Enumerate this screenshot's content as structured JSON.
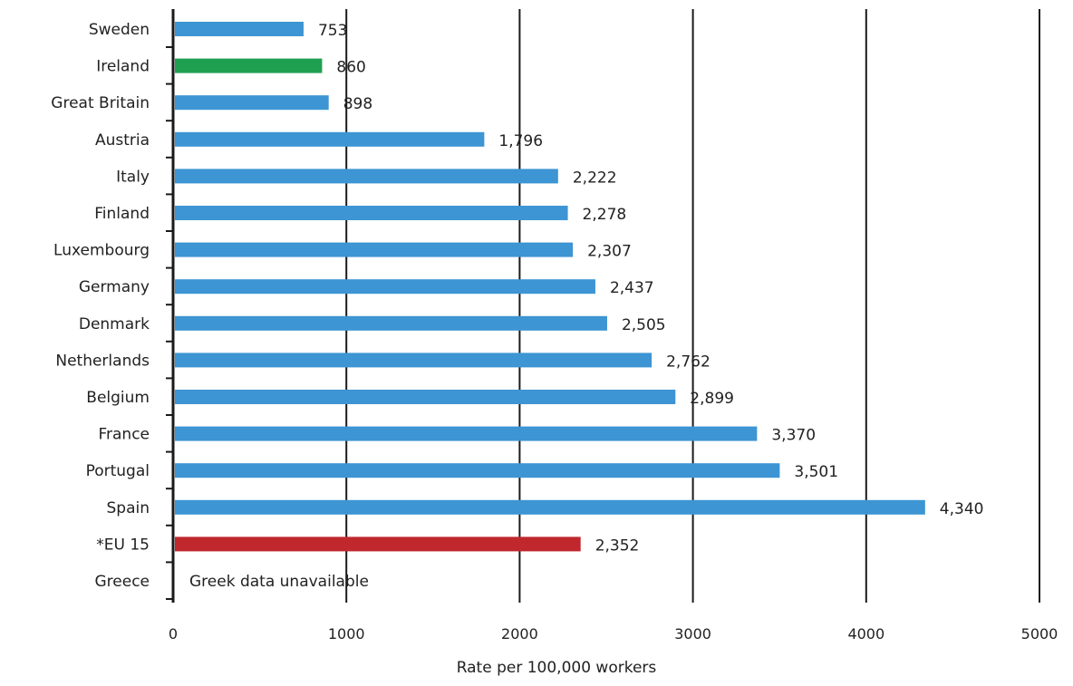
{
  "chart_data": {
    "type": "bar",
    "orientation": "horizontal",
    "categories": [
      "Sweden",
      "Ireland",
      "Great Britain",
      "Austria",
      "Italy",
      "Finland",
      "Luxembourg",
      "Germany",
      "Denmark",
      "Netherlands",
      "Belgium",
      "France",
      "Portugal",
      "Spain",
      "*EU 15",
      "Greece"
    ],
    "values": [
      753,
      860,
      898,
      1796,
      2222,
      2278,
      2307,
      2437,
      2505,
      2762,
      2899,
      3370,
      3501,
      4340,
      2352,
      null
    ],
    "value_labels": [
      "753",
      "860",
      "898",
      "1,796",
      "2,222",
      "2,278",
      "2,307",
      "2,437",
      "2,505",
      "2,762",
      "2,899",
      "3,370",
      "3,501",
      "4,340",
      "2,352",
      ""
    ],
    "bar_colors": [
      "#3d95d3",
      "#1fa050",
      "#3d95d3",
      "#3d95d3",
      "#3d95d3",
      "#3d95d3",
      "#3d95d3",
      "#3d95d3",
      "#3d95d3",
      "#3d95d3",
      "#3d95d3",
      "#3d95d3",
      "#3d95d3",
      "#3d95d3",
      "#c0282d",
      "#3d95d3"
    ],
    "annotations": [
      {
        "category": "Greece",
        "text": "Greek data unavailable"
      }
    ],
    "xlabel": "Rate per 100,000 workers",
    "ylabel": "",
    "xlim": [
      0,
      5000
    ],
    "xticks": [
      0,
      1000,
      2000,
      3000,
      4000,
      5000
    ],
    "xtick_labels": [
      "0",
      "1000",
      "2000",
      "3000",
      "4000",
      "5000"
    ],
    "grid": true,
    "legend": "none"
  }
}
